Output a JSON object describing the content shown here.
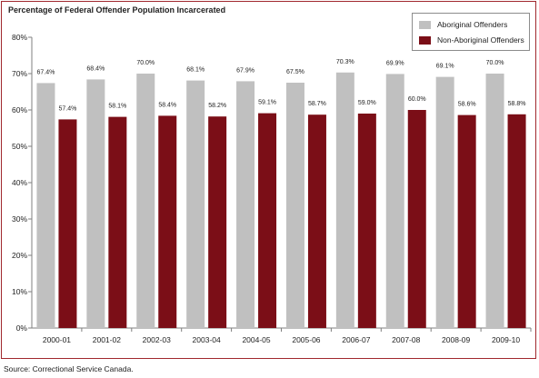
{
  "source": "Source:  Correctional Service Canada.",
  "colors": {
    "frame": "#a0282e",
    "series_1": "#c0c0c0",
    "series_2": "#7b0e17",
    "axis": "#7f7f7f"
  },
  "chart_data": {
    "type": "bar",
    "title": "Percentage of Federal Offender Population Incarcerated",
    "xlabel": "",
    "ylabel": "",
    "ylim": [
      0,
      80
    ],
    "y_ticks": [
      "0%",
      "10%",
      "20%",
      "30%",
      "40%",
      "50%",
      "60%",
      "70%",
      "80%"
    ],
    "grid": false,
    "legend_position": "top-right",
    "categories": [
      "2000-01",
      "2001-02",
      "2002-03",
      "2003-04",
      "2004-05",
      "2005-06",
      "2006-07",
      "2007-08",
      "2008-09",
      "2009-10"
    ],
    "series": [
      {
        "name": "Aboriginal Offenders",
        "values": [
          67.4,
          68.4,
          70.0,
          68.1,
          67.9,
          67.5,
          70.3,
          69.9,
          69.1,
          70.0
        ],
        "labels": [
          "67.4%",
          "68.4%",
          "70.0%",
          "68.1%",
          "67.9%",
          "67.5%",
          "70.3%",
          "69.9%",
          "69.1%",
          "70.0%"
        ]
      },
      {
        "name": "Non-Aboriginal Offenders",
        "values": [
          57.4,
          58.1,
          58.4,
          58.2,
          59.1,
          58.7,
          59.0,
          60.0,
          58.6,
          58.8
        ],
        "labels": [
          "57.4%",
          "58.1%",
          "58.4%",
          "58.2%",
          "59.1%",
          "58.7%",
          "59.0%",
          "60.0%",
          "58.6%",
          "58.8%"
        ]
      }
    ]
  }
}
